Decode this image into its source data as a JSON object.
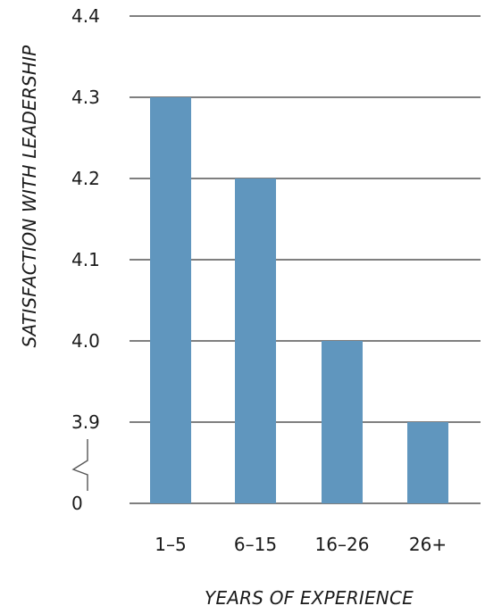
{
  "chart_data": {
    "type": "bar",
    "categories": [
      "1–5",
      "6–15",
      "16–26",
      "26+"
    ],
    "values": [
      4.3,
      4.2,
      4.0,
      3.9
    ],
    "ylabel": "SATISFACTION WITH LEADERSHIP",
    "xlabel": "YEARS OF EXPERIENCE",
    "y_ticks": [
      "0",
      "3.9",
      "4.0",
      "4.1",
      "4.2",
      "4.3",
      "4.4"
    ],
    "ylim": [
      3.8,
      4.4
    ],
    "axis_break": true,
    "grid": true,
    "colors": {
      "bar": "#6096BE",
      "grid": "#333333",
      "text": "#1a1a1a"
    }
  }
}
